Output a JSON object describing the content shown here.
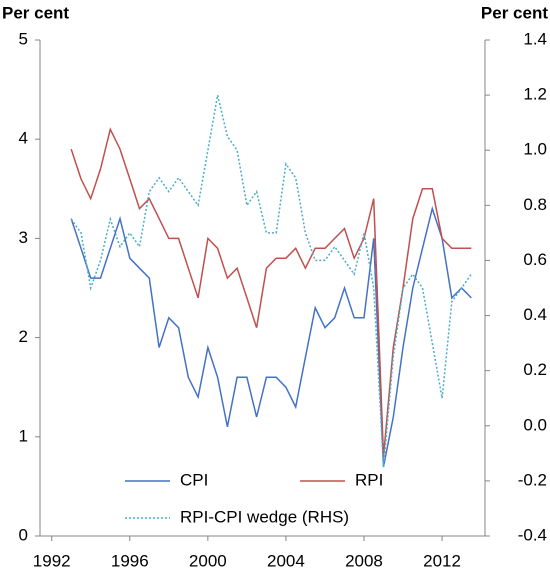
{
  "chart_data": {
    "type": "line",
    "y_label": "Per cent",
    "y2_label": "Per cent",
    "x": [
      1993,
      1993.5,
      1994,
      1994.5,
      1995,
      1995.5,
      1996,
      1996.5,
      1997,
      1997.5,
      1998,
      1998.5,
      1999,
      1999.5,
      2000,
      2000.5,
      2001,
      2001.5,
      2002,
      2002.5,
      2003,
      2003.5,
      2004,
      2004.5,
      2005,
      2005.5,
      2006,
      2006.5,
      2007,
      2007.5,
      2008,
      2008.5,
      2009,
      2009.5,
      2010,
      2010.5,
      2011,
      2011.5,
      2012,
      2012.5,
      2013,
      2013.5
    ],
    "series": [
      {
        "name": "CPI",
        "color": "#4472c4",
        "line_style": "solid",
        "values": [
          3.2,
          2.9,
          2.6,
          2.6,
          2.9,
          3.2,
          2.8,
          2.7,
          2.6,
          1.9,
          2.2,
          2.1,
          1.6,
          1.4,
          1.9,
          1.6,
          1.1,
          1.6,
          1.6,
          1.2,
          1.6,
          1.6,
          1.5,
          1.3,
          1.8,
          2.3,
          2.1,
          2.2,
          2.5,
          2.2,
          2.2,
          3.0,
          0.7,
          1.2,
          1.9,
          2.5,
          2.9,
          3.3,
          3.0,
          2.4,
          2.5,
          2.4
        ]
      },
      {
        "name": "RPI",
        "color": "#c0504d",
        "line_style": "solid",
        "values": [
          3.9,
          3.6,
          3.4,
          3.7,
          4.1,
          3.9,
          3.6,
          3.3,
          3.4,
          3.2,
          3.0,
          3.0,
          2.7,
          2.4,
          3.0,
          2.9,
          2.6,
          2.7,
          2.4,
          2.1,
          2.7,
          2.8,
          2.8,
          2.9,
          2.7,
          2.9,
          2.9,
          3.0,
          3.1,
          2.8,
          3.0,
          3.4,
          0.8,
          1.9,
          2.5,
          3.2,
          3.5,
          3.5,
          3.0,
          2.9,
          2.9,
          2.9
        ]
      },
      {
        "name": "RPI-CPI wedge (RHS)",
        "color": "#4bacc6",
        "line_style": "dotted",
        "axis": "y2",
        "values": [
          0.75,
          0.7,
          0.5,
          0.6,
          0.75,
          0.65,
          0.7,
          0.65,
          0.85,
          0.9,
          0.85,
          0.9,
          0.85,
          0.8,
          1.0,
          1.2,
          1.05,
          1.0,
          0.8,
          0.85,
          0.7,
          0.7,
          0.95,
          0.9,
          0.7,
          0.6,
          0.6,
          0.65,
          0.6,
          0.55,
          0.7,
          0.5,
          -0.15,
          0.25,
          0.5,
          0.55,
          0.5,
          0.3,
          0.1,
          0.45,
          0.5,
          0.55
        ]
      }
    ],
    "xlim": [
      1991.4,
      2014.2
    ],
    "xticks": [
      1992,
      1996,
      2000,
      2004,
      2008,
      2012
    ],
    "ylim": [
      0,
      5
    ],
    "yticks": [
      0,
      1,
      2,
      3,
      4,
      5
    ],
    "y2lim": [
      -0.4,
      1.4
    ],
    "y2ticks": [
      -0.4,
      -0.2,
      {
        "value": 0,
        "label": "0.0"
      },
      0.2,
      0.4,
      0.6,
      0.8,
      {
        "value": 1,
        "label": "1.0"
      },
      1.2,
      1.4
    ],
    "grid": false,
    "legend": "bottom"
  }
}
